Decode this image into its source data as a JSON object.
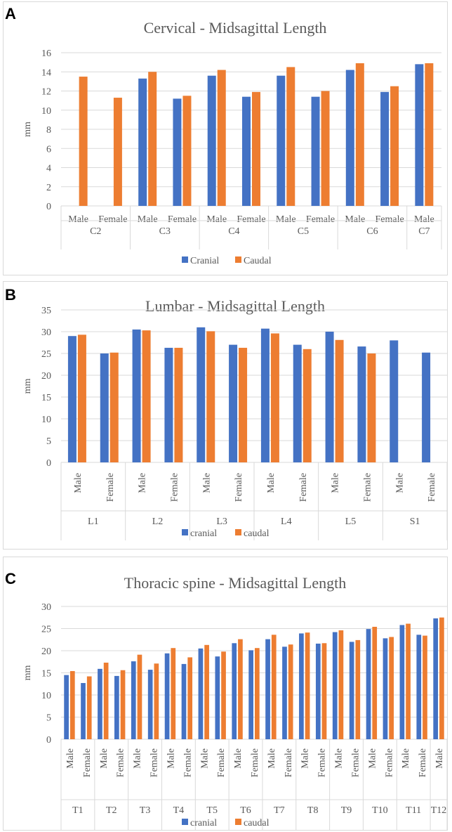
{
  "panels": [
    {
      "letter": "A"
    },
    {
      "letter": "B"
    },
    {
      "letter": "C"
    }
  ],
  "colors": {
    "cranial": "#4472C4",
    "caudal": "#ED7D31",
    "grid": "#d9d9d9",
    "text": "#595959"
  },
  "chart_data": [
    {
      "type": "bar",
      "title": "Cervical - Midsagittal Length",
      "ylabel": "mm",
      "ylim": [
        0,
        16
      ],
      "yticks": [
        0,
        2,
        4,
        6,
        8,
        10,
        12,
        14,
        16
      ],
      "grid": true,
      "legend_position": "bottom",
      "categories": [
        "Male",
        "Female",
        "Male",
        "Female",
        "Male",
        "Female",
        "Male",
        "Female",
        "Male",
        "Female",
        "Male"
      ],
      "groups": [
        {
          "label": "C2",
          "count": 2
        },
        {
          "label": "C3",
          "count": 2
        },
        {
          "label": "C4",
          "count": 2
        },
        {
          "label": "C5",
          "count": 2
        },
        {
          "label": "C6",
          "count": 2
        },
        {
          "label": "C7",
          "count": 1
        }
      ],
      "series": [
        {
          "name": "Cranial",
          "values": [
            null,
            null,
            13.3,
            11.2,
            13.6,
            11.4,
            13.6,
            11.4,
            14.2,
            11.9,
            14.8
          ]
        },
        {
          "name": "Caudal",
          "values": [
            13.5,
            11.3,
            14.0,
            11.5,
            14.2,
            11.9,
            14.5,
            12.0,
            14.9,
            12.5,
            14.9
          ]
        }
      ]
    },
    {
      "type": "bar",
      "title": "Lumbar - Midsagittal Length",
      "ylabel": "mm",
      "ylim": [
        0,
        35
      ],
      "yticks": [
        0,
        5,
        10,
        15,
        20,
        25,
        30,
        35
      ],
      "grid": true,
      "legend_position": "bottom",
      "categories": [
        "Male",
        "Female",
        "Male",
        "Female",
        "Male",
        "Female",
        "Male",
        "Female",
        "Male",
        "Female",
        "Male",
        "Female"
      ],
      "groups": [
        {
          "label": "L1",
          "count": 2
        },
        {
          "label": "L2",
          "count": 2
        },
        {
          "label": "L3",
          "count": 2
        },
        {
          "label": "L4",
          "count": 2
        },
        {
          "label": "L5",
          "count": 2
        },
        {
          "label": "S1",
          "count": 2
        }
      ],
      "series": [
        {
          "name": "cranial",
          "values": [
            29.0,
            25.0,
            30.5,
            26.3,
            31.0,
            27.0,
            30.7,
            27.0,
            30.0,
            26.6,
            28.0,
            25.2
          ]
        },
        {
          "name": "caudal",
          "values": [
            29.3,
            25.2,
            30.3,
            26.3,
            30.1,
            26.3,
            29.6,
            26.0,
            28.1,
            25.0,
            null,
            null
          ]
        }
      ]
    },
    {
      "type": "bar",
      "title": "Thoracic spine - Midsagittal Length",
      "ylabel": "mm",
      "ylim": [
        0,
        30
      ],
      "yticks": [
        0,
        5,
        10,
        15,
        20,
        25,
        30
      ],
      "grid": true,
      "legend_position": "bottom",
      "categories": [
        "Male",
        "Female",
        "Male",
        "Female",
        "Male",
        "Female",
        "Male",
        "Female",
        "Male",
        "Female",
        "Male",
        "Female",
        "Male",
        "Female",
        "Male",
        "Female",
        "Male",
        "Female",
        "Male",
        "Female",
        "Male",
        "Female",
        "Male"
      ],
      "groups": [
        {
          "label": "T1",
          "count": 2
        },
        {
          "label": "T2",
          "count": 2
        },
        {
          "label": "T3",
          "count": 2
        },
        {
          "label": "T4",
          "count": 2
        },
        {
          "label": "T5",
          "count": 2
        },
        {
          "label": "T6",
          "count": 2
        },
        {
          "label": "T7",
          "count": 2
        },
        {
          "label": "T8",
          "count": 2
        },
        {
          "label": "T9",
          "count": 2
        },
        {
          "label": "T10",
          "count": 2
        },
        {
          "label": "T11",
          "count": 2
        },
        {
          "label": "T12",
          "count": 1
        }
      ],
      "series": [
        {
          "name": "cranial",
          "values": [
            14.5,
            12.7,
            15.9,
            14.3,
            17.6,
            15.7,
            19.4,
            17.0,
            20.5,
            18.7,
            21.7,
            20.1,
            22.6,
            20.9,
            23.9,
            21.6,
            24.2,
            22.0,
            24.9,
            22.8,
            25.8,
            23.6,
            27.3
          ]
        },
        {
          "name": "caudal",
          "values": [
            15.4,
            14.2,
            17.3,
            15.6,
            19.1,
            17.1,
            20.6,
            18.5,
            21.3,
            19.8,
            22.6,
            20.6,
            23.6,
            21.4,
            24.1,
            21.7,
            24.6,
            22.4,
            25.4,
            23.1,
            26.1,
            23.4,
            27.5
          ]
        }
      ]
    }
  ]
}
